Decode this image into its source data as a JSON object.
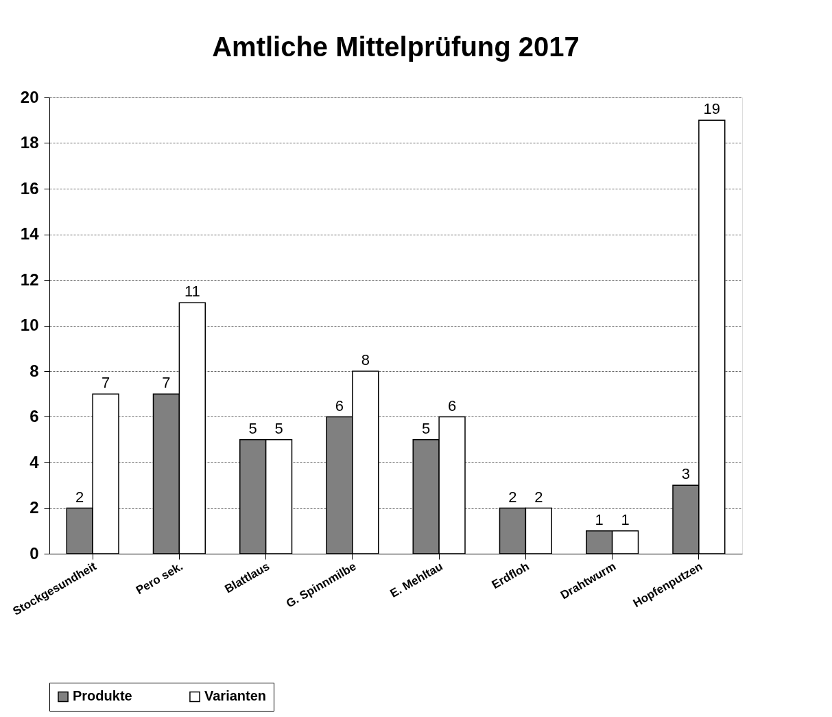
{
  "chart_data": {
    "type": "bar",
    "title": "Amtliche Mittelprüfung 2017",
    "categories": [
      "Stockgesundheit",
      "Pero sek.",
      "Blattlaus",
      "G. Spinnmilbe",
      "E. Mehltau",
      "Erdfloh",
      "Drahtwurm",
      "Hopfenputzen"
    ],
    "series": [
      {
        "name": "Produkte",
        "color": "#808080",
        "values": [
          2,
          7,
          5,
          6,
          5,
          2,
          1,
          3
        ]
      },
      {
        "name": "Varianten",
        "color": "#ffffff",
        "values": [
          7,
          11,
          5,
          8,
          6,
          2,
          1,
          19
        ]
      }
    ],
    "ylim": [
      0,
      20
    ],
    "yticks": [
      0,
      2,
      4,
      6,
      8,
      10,
      12,
      14,
      16,
      18,
      20
    ],
    "grid": "y",
    "legend": "bottom",
    "data_labels": true
  }
}
